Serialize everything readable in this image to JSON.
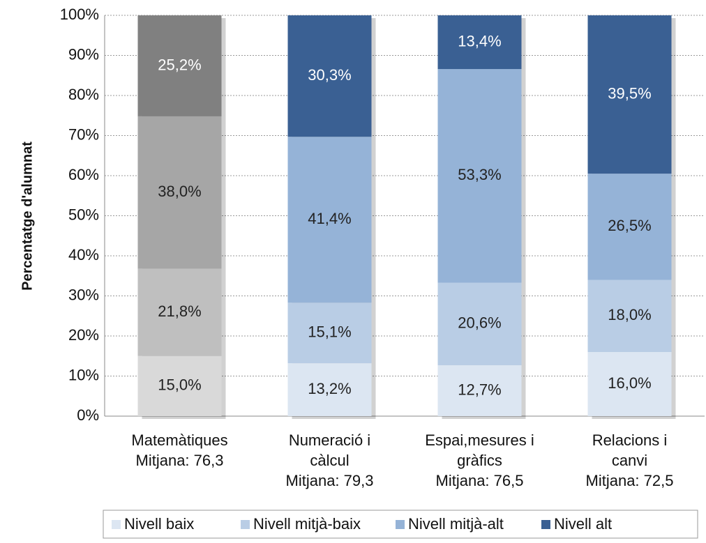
{
  "chart_data": {
    "type": "stacked_bar",
    "y_label": "Percentatge d'alumnat",
    "categories": [
      [
        "Matemàtiques",
        "Mitjana: 76,3"
      ],
      [
        "Numeració i",
        "càlcul",
        "Mitjana: 79,3"
      ],
      [
        "Espai,mesures i",
        "gràfics",
        "Mitjana: 76,5"
      ],
      [
        "Relacions i",
        "canvi",
        "Mitjana: 72,5"
      ]
    ],
    "series": [
      {
        "name": "Nivell baix",
        "color": "#dce6f2",
        "colors": [
          "#d9d9d9",
          "#dce6f2",
          "#dce6f2",
          "#dce6f2"
        ],
        "label_colors": [
          "#222222",
          "#222222",
          "#222222",
          "#222222"
        ],
        "values": [
          15.0,
          13.2,
          12.7,
          16.0
        ],
        "value_labels": [
          "15,0%",
          "13,2%",
          "12,7%",
          "16,0%"
        ]
      },
      {
        "name": "Nivell mitjà-baix",
        "color": "#b9cde5",
        "colors": [
          "#bfbfbf",
          "#b9cde5",
          "#b9cde5",
          "#b9cde5"
        ],
        "label_colors": [
          "#222222",
          "#222222",
          "#222222",
          "#222222"
        ],
        "values": [
          21.8,
          15.1,
          20.6,
          18.0
        ],
        "value_labels": [
          "21,8%",
          "15,1%",
          "20,6%",
          "18,0%"
        ]
      },
      {
        "name": "Nivell mitjà-alt",
        "color": "#95b3d7",
        "colors": [
          "#a6a6a6",
          "#95b3d7",
          "#95b3d7",
          "#95b3d7"
        ],
        "label_colors": [
          "#222222",
          "#222222",
          "#222222",
          "#222222"
        ],
        "values": [
          38.0,
          41.4,
          53.3,
          26.5
        ],
        "value_labels": [
          "38,0%",
          "41,4%",
          "53,3%",
          "26,5%"
        ]
      },
      {
        "name": "Nivell alt",
        "color": "#3a6093",
        "colors": [
          "#808080",
          "#3a6093",
          "#3a6093",
          "#3a6093"
        ],
        "label_colors": [
          "#ffffff",
          "#ffffff",
          "#ffffff",
          "#ffffff"
        ],
        "values": [
          25.2,
          30.3,
          13.4,
          39.5
        ],
        "value_labels": [
          "25,2%",
          "30,3%",
          "13,4%",
          "39,5%"
        ]
      }
    ],
    "ylim": [
      0,
      100
    ],
    "yticks": [
      {
        "value": 0,
        "label": "0%"
      },
      {
        "value": 10,
        "label": "10%"
      },
      {
        "value": 20,
        "label": "20%"
      },
      {
        "value": 30,
        "label": "30%"
      },
      {
        "value": 40,
        "label": "40%"
      },
      {
        "value": 50,
        "label": "50%"
      },
      {
        "value": 60,
        "label": "60%"
      },
      {
        "value": 70,
        "label": "70%"
      },
      {
        "value": 80,
        "label": "80%"
      },
      {
        "value": 90,
        "label": "90%"
      },
      {
        "value": 100,
        "label": "100%"
      }
    ],
    "grid": true,
    "legend": "bottom"
  }
}
